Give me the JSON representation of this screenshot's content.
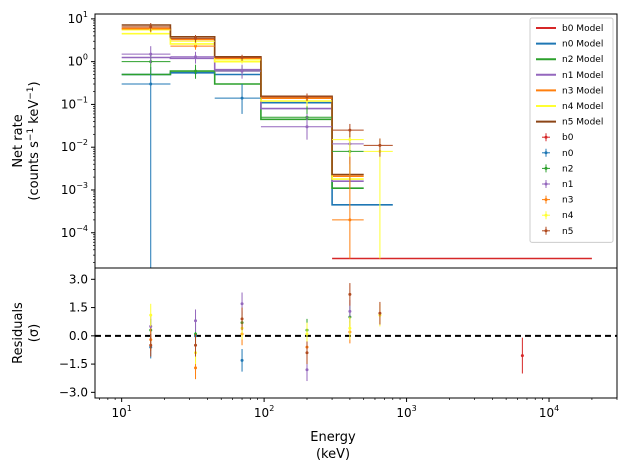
{
  "chart_data": [
    {
      "panel": "main",
      "type": "step+errorbar",
      "xlabel_line1": "Energy",
      "xlabel_line2": "(keV)",
      "ylabel_line1": "Net rate",
      "ylabel_line2_text": "(counts s",
      "ylabel_line2_sup1": "−1",
      "ylabel_line2_mid": " keV",
      "ylabel_line2_sup2": "−1",
      "ylabel_line2_end": ")",
      "xscale": "log",
      "yscale": "log",
      "xlim": [
        6.5,
        30000
      ],
      "ylim": [
        1.5e-05,
        13
      ],
      "x_ticks": [
        {
          "v": 10,
          "base": "10",
          "exp": "1"
        },
        {
          "v": 100,
          "base": "10",
          "exp": "2"
        },
        {
          "v": 1000,
          "base": "10",
          "exp": "3"
        },
        {
          "v": 10000,
          "base": "10",
          "exp": "4"
        }
      ],
      "y_ticks": [
        {
          "v": 10,
          "base": "10",
          "exp": "1"
        },
        {
          "v": 1,
          "base": "10",
          "exp": "0"
        },
        {
          "v": 0.1,
          "base": "10",
          "exp": "−1"
        },
        {
          "v": 0.01,
          "base": "10",
          "exp": "−2"
        },
        {
          "v": 0.001,
          "base": "10",
          "exp": "−3"
        },
        {
          "v": 0.0001,
          "base": "10",
          "exp": "−4"
        }
      ],
      "legend_position": "top-right",
      "models": [
        {
          "name": "b0 Model",
          "color": "#d62728",
          "edges": [
            300,
            20000
          ],
          "values": [
            2.5e-05
          ]
        },
        {
          "name": "n0 Model",
          "color": "#1f77b4",
          "edges": [
            10,
            22,
            45,
            95,
            300,
            800
          ],
          "values": [
            0.5,
            0.55,
            0.5,
            0.11,
            0.00045
          ]
        },
        {
          "name": "n2 Model",
          "color": "#2ca02c",
          "edges": [
            10,
            22,
            45,
            95,
            300,
            500
          ],
          "values": [
            0.5,
            0.6,
            0.3,
            0.045,
            0.0011
          ]
        },
        {
          "name": "n1 Model",
          "color": "#9467bd",
          "edges": [
            10,
            22,
            45,
            95,
            300,
            500
          ],
          "values": [
            1.25,
            1.2,
            0.65,
            0.08,
            0.0016
          ]
        },
        {
          "name": "n3 Model",
          "color": "#ff7f0e",
          "edges": [
            10,
            22,
            45,
            95,
            300,
            500
          ],
          "values": [
            6.0,
            3.3,
            1.2,
            0.14,
            0.0021
          ]
        },
        {
          "name": "n4 Model",
          "color": "#ffff33",
          "edges": [
            10,
            22,
            45,
            95,
            300,
            500
          ],
          "values": [
            4.5,
            2.6,
            1.0,
            0.12,
            0.0018
          ]
        },
        {
          "name": "n5 Model",
          "color": "#8c4516",
          "edges": [
            10,
            22,
            45,
            95,
            300,
            500
          ],
          "values": [
            7.2,
            3.8,
            1.3,
            0.155,
            0.0023
          ]
        }
      ],
      "data": [
        {
          "name": "b0",
          "color": "#d62728",
          "points": []
        },
        {
          "name": "n0",
          "color": "#1f77b4",
          "points": [
            {
              "x": 16,
              "xlo": 10,
              "xhi": 22,
              "y": 0.3,
              "ylo": 1e-05,
              "yhi": 0.75
            },
            {
              "x": 33,
              "xlo": 22,
              "xhi": 45,
              "y": 0.55,
              "ylo": 0.4,
              "yhi": 0.7
            },
            {
              "x": 70,
              "xlo": 45,
              "xhi": 95,
              "y": 0.14,
              "ylo": 0.06,
              "yhi": 0.3
            }
          ]
        },
        {
          "name": "n2",
          "color": "#2ca02c",
          "points": [
            {
              "x": 16,
              "xlo": 10,
              "xhi": 22,
              "y": 1.0,
              "ylo": 0.5,
              "yhi": 1.6
            },
            {
              "x": 33,
              "xlo": 22,
              "xhi": 45,
              "y": 0.6,
              "ylo": 0.4,
              "yhi": 0.85
            },
            {
              "x": 70,
              "xlo": 45,
              "xhi": 95,
              "y": 0.6,
              "ylo": 0.45,
              "yhi": 0.8
            },
            {
              "x": 200,
              "xlo": 95,
              "xhi": 300,
              "y": 0.05,
              "ylo": 0.02,
              "yhi": 0.11
            },
            {
              "x": 400,
              "xlo": 300,
              "xhi": 500,
              "y": 0.008,
              "ylo": 0.0011,
              "yhi": 0.018
            }
          ]
        },
        {
          "name": "n1",
          "color": "#9467bd",
          "points": [
            {
              "x": 16,
              "xlo": 10,
              "xhi": 22,
              "y": 1.5,
              "ylo": 0.9,
              "yhi": 2.3
            },
            {
              "x": 33,
              "xlo": 22,
              "xhi": 45,
              "y": 1.3,
              "ylo": 0.9,
              "yhi": 1.7
            },
            {
              "x": 70,
              "xlo": 45,
              "xhi": 95,
              "y": 0.6,
              "ylo": 0.4,
              "yhi": 0.85
            },
            {
              "x": 200,
              "xlo": 95,
              "xhi": 300,
              "y": 0.03,
              "ylo": 0.015,
              "yhi": 0.06
            },
            {
              "x": 400,
              "xlo": 300,
              "xhi": 500,
              "y": 0.012,
              "ylo": 0.004,
              "yhi": 0.025
            }
          ]
        },
        {
          "name": "n3",
          "color": "#ff7f0e",
          "points": [
            {
              "x": 16,
              "xlo": 10,
              "xhi": 22,
              "y": 5.8,
              "ylo": 4.8,
              "yhi": 7.0
            },
            {
              "x": 33,
              "xlo": 22,
              "xhi": 45,
              "y": 2.3,
              "ylo": 1.9,
              "yhi": 2.8
            },
            {
              "x": 70,
              "xlo": 45,
              "xhi": 95,
              "y": 1.2,
              "ylo": 1.0,
              "yhi": 1.4
            },
            {
              "x": 200,
              "xlo": 95,
              "xhi": 300,
              "y": 0.14,
              "ylo": 0.11,
              "yhi": 0.17
            },
            {
              "x": 400,
              "xlo": 300,
              "xhi": 500,
              "y": 0.0002,
              "ylo": 2.5e-05,
              "yhi": 0.007
            }
          ]
        },
        {
          "name": "n4",
          "color": "#ffff33",
          "points": [
            {
              "x": 16,
              "xlo": 10,
              "xhi": 22,
              "y": 5.5,
              "ylo": 4.4,
              "yhi": 6.6
            },
            {
              "x": 33,
              "xlo": 22,
              "xhi": 45,
              "y": 3.0,
              "ylo": 2.4,
              "yhi": 3.6
            },
            {
              "x": 70,
              "xlo": 45,
              "xhi": 95,
              "y": 1.1,
              "ylo": 0.9,
              "yhi": 1.3
            },
            {
              "x": 200,
              "xlo": 95,
              "xhi": 300,
              "y": 0.12,
              "ylo": 0.09,
              "yhi": 0.15
            },
            {
              "x": 400,
              "xlo": 300,
              "xhi": 500,
              "y": 0.015,
              "ylo": 0.006,
              "yhi": 0.026
            },
            {
              "x": 650,
              "xlo": 500,
              "xhi": 800,
              "y": 0.008,
              "ylo": 2.5e-05,
              "yhi": 0.016
            }
          ]
        },
        {
          "name": "n5",
          "color": "#b04a1f",
          "points": [
            {
              "x": 16,
              "xlo": 10,
              "xhi": 22,
              "y": 6.5,
              "ylo": 5.0,
              "yhi": 8.0
            },
            {
              "x": 33,
              "xlo": 22,
              "xhi": 45,
              "y": 3.5,
              "ylo": 2.8,
              "yhi": 4.2
            },
            {
              "x": 70,
              "xlo": 45,
              "xhi": 95,
              "y": 1.25,
              "ylo": 1.05,
              "yhi": 1.45
            },
            {
              "x": 200,
              "xlo": 95,
              "xhi": 300,
              "y": 0.15,
              "ylo": 0.12,
              "yhi": 0.18
            },
            {
              "x": 400,
              "xlo": 300,
              "xhi": 500,
              "y": 0.025,
              "ylo": 0.017,
              "yhi": 0.035
            },
            {
              "x": 650,
              "xlo": 500,
              "xhi": 800,
              "y": 0.011,
              "ylo": 0.006,
              "yhi": 0.016
            }
          ]
        }
      ]
    },
    {
      "panel": "residuals",
      "type": "errorbar",
      "ylabel_line1": "Residuals",
      "ylabel_line2": "(σ)",
      "xscale": "log",
      "xlim": [
        6.5,
        30000
      ],
      "ylim": [
        -3.3,
        3.6
      ],
      "y_ticks": [
        {
          "v": 3.0,
          "label": "3.0"
        },
        {
          "v": 1.5,
          "label": "1.5"
        },
        {
          "v": 0.0,
          "label": "0.0"
        },
        {
          "v": -1.5,
          "label": "−1.5"
        },
        {
          "v": -3.0,
          "label": "−3.0"
        }
      ],
      "zero_line": true,
      "series": [
        {
          "name": "b0",
          "color": "#d62728",
          "points": [
            {
              "x": 6500,
              "y": -1.05,
              "ylo": -2.0,
              "yhi": -0.1
            }
          ]
        },
        {
          "name": "n0",
          "color": "#1f77b4",
          "points": [
            {
              "x": 16,
              "y": -0.6,
              "ylo": -1.2,
              "yhi": 0.0
            },
            {
              "x": 33,
              "y": 0.0,
              "ylo": -0.6,
              "yhi": 0.6
            },
            {
              "x": 70,
              "y": -1.3,
              "ylo": -1.9,
              "yhi": -0.7
            }
          ]
        },
        {
          "name": "n2",
          "color": "#2ca02c",
          "points": [
            {
              "x": 16,
              "y": 0.3,
              "ylo": -0.3,
              "yhi": 0.9
            },
            {
              "x": 33,
              "y": 0.1,
              "ylo": -0.5,
              "yhi": 0.7
            },
            {
              "x": 70,
              "y": 0.7,
              "ylo": 0.1,
              "yhi": 1.3
            },
            {
              "x": 200,
              "y": 0.3,
              "ylo": -0.3,
              "yhi": 0.9
            },
            {
              "x": 400,
              "y": 1.0,
              "ylo": 0.4,
              "yhi": 1.6
            }
          ]
        },
        {
          "name": "n1",
          "color": "#9467bd",
          "points": [
            {
              "x": 16,
              "y": 0.5,
              "ylo": -0.1,
              "yhi": 1.1
            },
            {
              "x": 33,
              "y": 0.8,
              "ylo": 0.2,
              "yhi": 1.4
            },
            {
              "x": 70,
              "y": 1.7,
              "ylo": 1.1,
              "yhi": 2.3
            },
            {
              "x": 200,
              "y": -1.8,
              "ylo": -2.4,
              "yhi": -1.2
            },
            {
              "x": 400,
              "y": 1.3,
              "ylo": 0.7,
              "yhi": 1.9
            }
          ]
        },
        {
          "name": "n3",
          "color": "#ff7f0e",
          "points": [
            {
              "x": 16,
              "y": -0.2,
              "ylo": -0.8,
              "yhi": 0.4
            },
            {
              "x": 33,
              "y": -1.7,
              "ylo": -2.3,
              "yhi": -1.1
            },
            {
              "x": 70,
              "y": 0.1,
              "ylo": -0.5,
              "yhi": 0.7
            },
            {
              "x": 200,
              "y": -0.6,
              "ylo": -1.2,
              "yhi": 0.0
            },
            {
              "x": 400,
              "y": 0.2,
              "ylo": -0.4,
              "yhi": 0.8
            }
          ]
        },
        {
          "name": "n4",
          "color": "#ffff33",
          "points": [
            {
              "x": 16,
              "y": 1.1,
              "ylo": 0.5,
              "yhi": 1.7
            },
            {
              "x": 33,
              "y": -0.9,
              "ylo": -1.5,
              "yhi": -0.3
            },
            {
              "x": 70,
              "y": 0.4,
              "ylo": -0.2,
              "yhi": 1.0
            },
            {
              "x": 200,
              "y": 0.1,
              "ylo": -0.5,
              "yhi": 0.7
            },
            {
              "x": 400,
              "y": 0.4,
              "ylo": -0.2,
              "yhi": 1.0
            },
            {
              "x": 650,
              "y": 1.1,
              "ylo": 0.5,
              "yhi": 1.7
            }
          ]
        },
        {
          "name": "n5",
          "color": "#b04a1f",
          "points": [
            {
              "x": 16,
              "y": -0.5,
              "ylo": -1.1,
              "yhi": 0.1
            },
            {
              "x": 33,
              "y": -0.5,
              "ylo": -1.1,
              "yhi": 0.1
            },
            {
              "x": 70,
              "y": 0.9,
              "ylo": 0.3,
              "yhi": 1.5
            },
            {
              "x": 200,
              "y": -0.9,
              "ylo": -1.5,
              "yhi": -0.3
            },
            {
              "x": 400,
              "y": 2.2,
              "ylo": 1.6,
              "yhi": 2.8
            },
            {
              "x": 650,
              "y": 1.2,
              "ylo": 0.6,
              "yhi": 1.8
            }
          ]
        }
      ]
    }
  ]
}
